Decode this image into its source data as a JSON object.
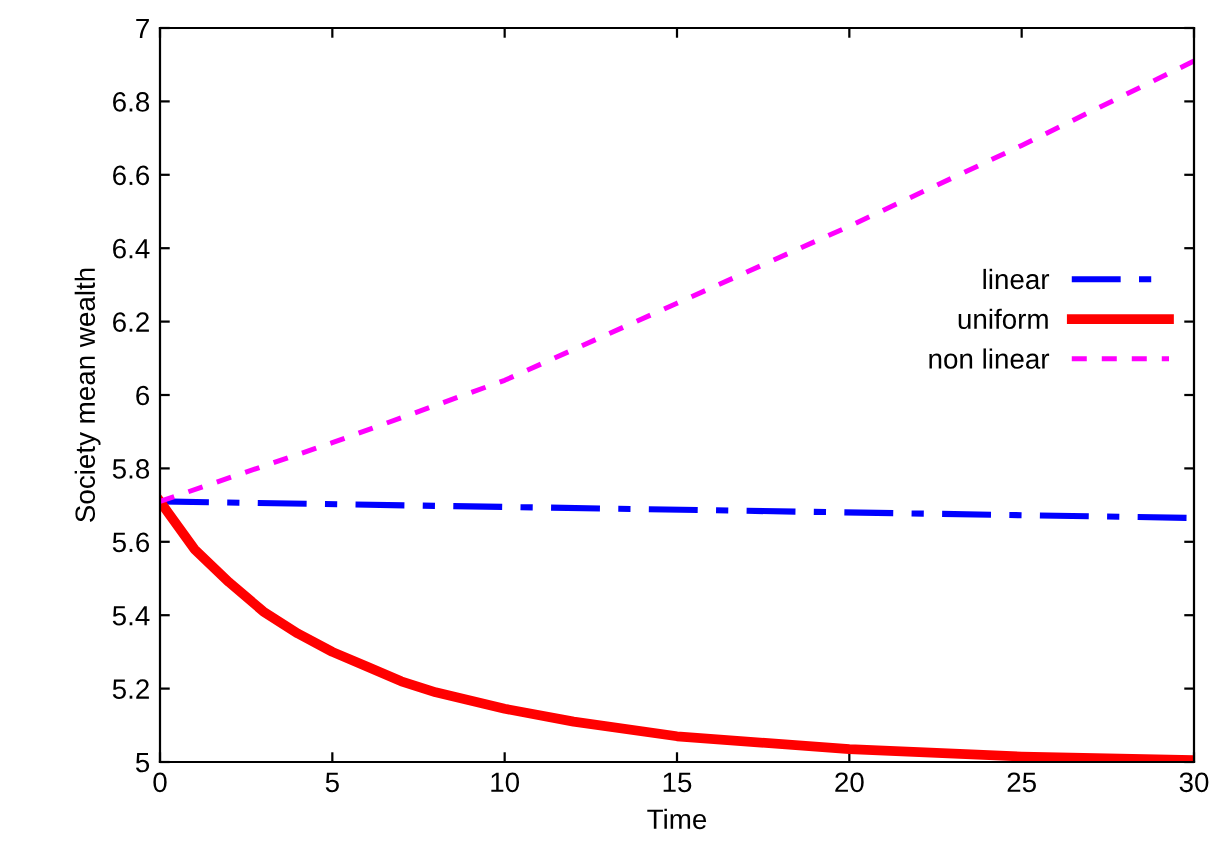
{
  "chart_data": {
    "type": "line",
    "xlabel": "Time",
    "ylabel": "Society mean wealth",
    "xlim": [
      0,
      30
    ],
    "ylim": [
      5,
      7
    ],
    "xticks": [
      0,
      5,
      10,
      15,
      20,
      25,
      30
    ],
    "yticks": [
      5,
      5.2,
      5.4,
      5.6,
      5.8,
      6,
      6.2,
      6.4,
      6.6,
      6.8,
      7
    ],
    "legend": "right",
    "grid": false,
    "series": [
      {
        "name": "linear",
        "color": "#0000ff",
        "line_style": "dashdot",
        "x": [
          0,
          30
        ],
        "values": [
          5.71,
          5.665
        ]
      },
      {
        "name": "uniform",
        "color": "#ff0000",
        "line_style": "solid",
        "x": [
          0,
          1,
          2,
          3,
          4,
          5,
          6,
          7,
          8,
          10,
          12,
          15,
          20,
          25,
          30
        ],
        "values": [
          5.71,
          5.58,
          5.49,
          5.41,
          5.35,
          5.3,
          5.26,
          5.22,
          5.19,
          5.145,
          5.11,
          5.07,
          5.035,
          5.015,
          5.005
        ]
      },
      {
        "name": "non linear",
        "color": "#ff00ff",
        "line_style": "dashed",
        "x": [
          0,
          5,
          10,
          15,
          20,
          25,
          30
        ],
        "values": [
          5.71,
          5.87,
          6.04,
          6.25,
          6.46,
          6.68,
          6.91
        ]
      }
    ]
  }
}
